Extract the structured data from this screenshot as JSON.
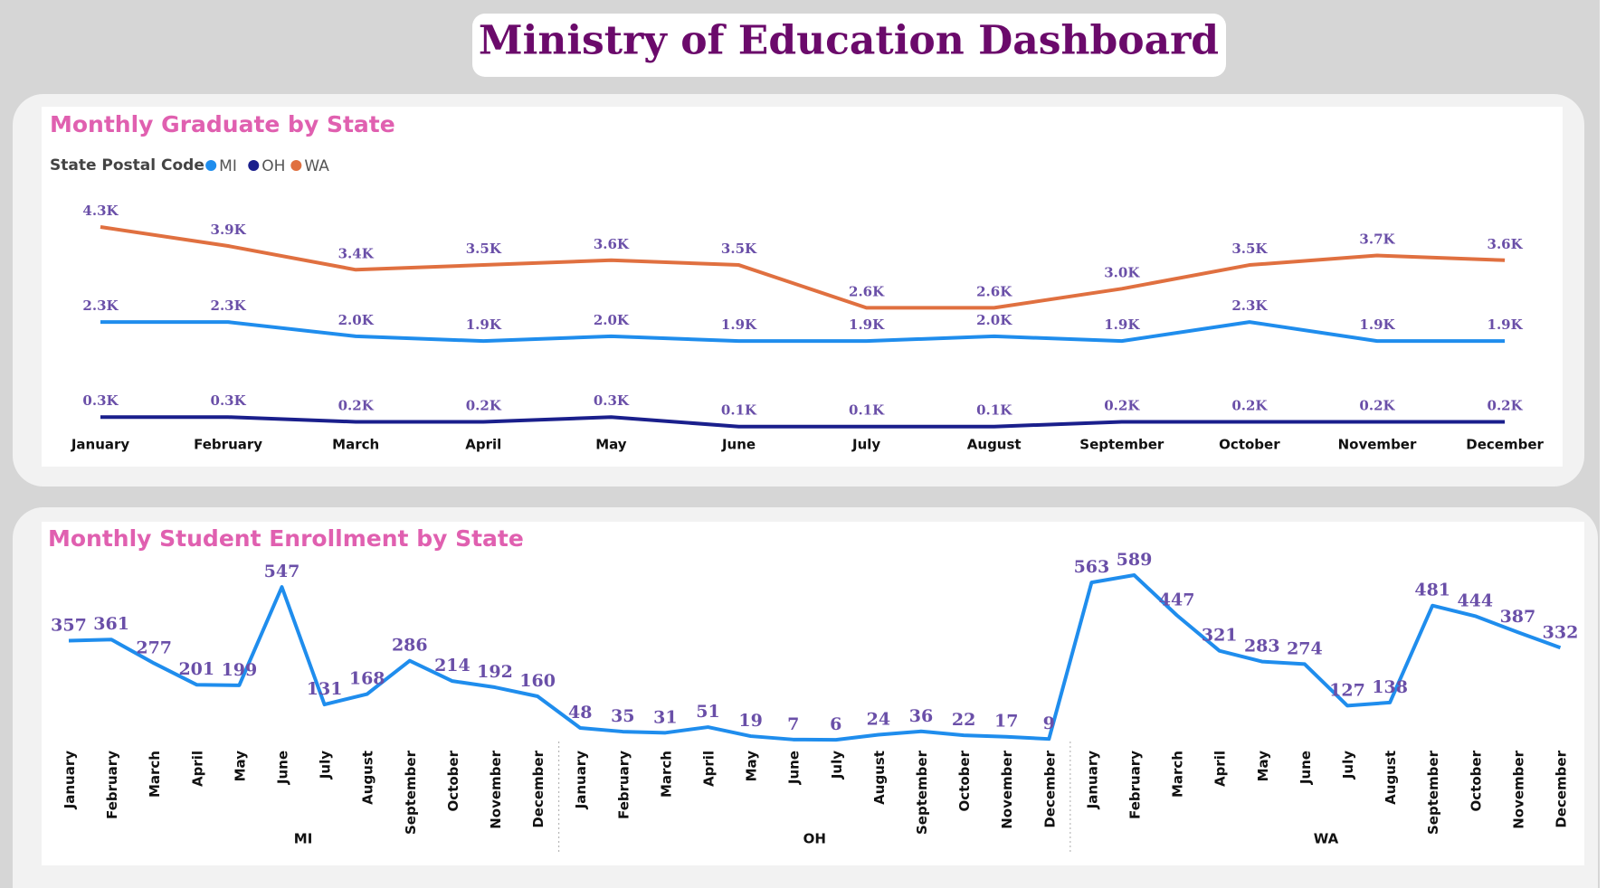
{
  "title": "Ministry of Education Dashboard",
  "chart_data": [
    {
      "type": "line",
      "title": "Monthly Graduate by State",
      "legend_title": "State Postal Code",
      "categories": [
        "January",
        "February",
        "March",
        "April",
        "May",
        "June",
        "July",
        "August",
        "September",
        "October",
        "November",
        "December"
      ],
      "series": [
        {
          "name": "MI",
          "color": "#1f8ded",
          "values": [
            2300,
            2300,
            2000,
            1900,
            2000,
            1900,
            1900,
            2000,
            1900,
            2300,
            1900,
            1900
          ],
          "value_labels": [
            "2.3K",
            "2.3K",
            "2.0K",
            "1.9K",
            "2.0K",
            "1.9K",
            "1.9K",
            "2.0K",
            "1.9K",
            "2.3K",
            "1.9K",
            "1.9K"
          ]
        },
        {
          "name": "OH",
          "color": "#1a1f8c",
          "values": [
            300,
            300,
            200,
            200,
            300,
            100,
            100,
            100,
            200,
            200,
            200,
            200
          ],
          "value_labels": [
            "0.3K",
            "0.3K",
            "0.2K",
            "0.2K",
            "0.3K",
            "0.1K",
            "0.1K",
            "0.1K",
            "0.2K",
            "0.2K",
            "0.2K",
            "0.2K"
          ]
        },
        {
          "name": "WA",
          "color": "#e07040",
          "values": [
            4300,
            3900,
            3400,
            3500,
            3600,
            3500,
            2600,
            2600,
            3000,
            3500,
            3700,
            3600
          ],
          "value_labels": [
            "4.3K",
            "3.9K",
            "3.4K",
            "3.5K",
            "3.6K",
            "3.5K",
            "2.6K",
            "2.6K",
            "3.0K",
            "3.5K",
            "3.7K",
            "3.6K"
          ]
        }
      ]
    },
    {
      "type": "line",
      "title": "Monthly Student Enrollment by State",
      "color": "#1f8ded",
      "groups": [
        "MI",
        "OH",
        "WA"
      ],
      "categories": [
        [
          "January",
          "February",
          "March",
          "April",
          "May",
          "June",
          "July",
          "August",
          "September",
          "October",
          "November",
          "December"
        ],
        [
          "January",
          "February",
          "March",
          "April",
          "May",
          "June",
          "July",
          "August",
          "September",
          "October",
          "November",
          "December"
        ],
        [
          "January",
          "February",
          "March",
          "April",
          "May",
          "June",
          "July",
          "August",
          "September",
          "October",
          "November",
          "December"
        ]
      ],
      "values": [
        [
          357,
          361,
          277,
          201,
          199,
          547,
          131,
          168,
          286,
          214,
          192,
          160
        ],
        [
          48,
          35,
          31,
          51,
          19,
          7,
          6,
          24,
          36,
          22,
          17,
          9
        ],
        [
          563,
          589,
          447,
          321,
          283,
          274,
          127,
          138,
          481,
          444,
          387,
          332
        ]
      ]
    }
  ]
}
